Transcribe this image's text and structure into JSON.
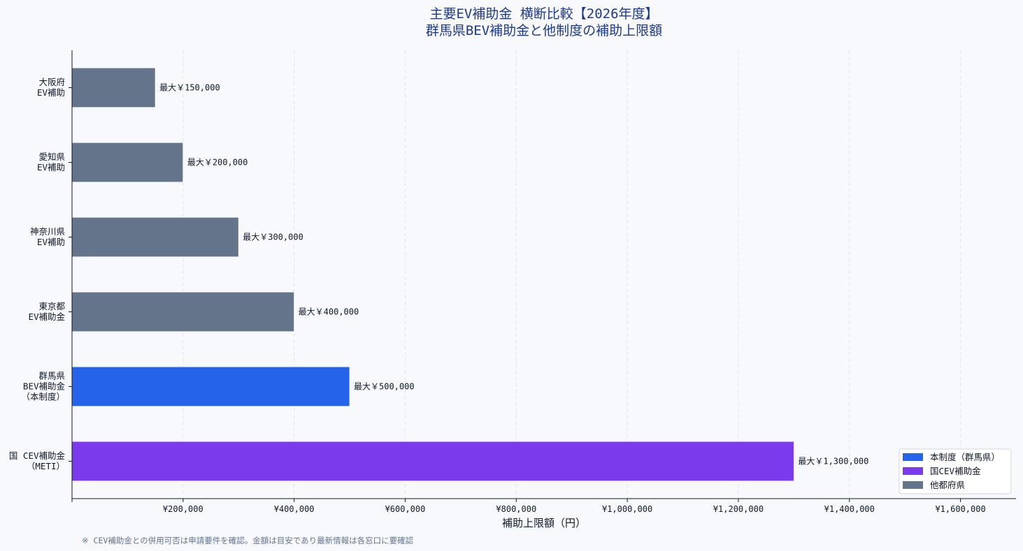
{
  "chart_data": {
    "type": "bar",
    "orientation": "horizontal",
    "title": [
      "主要EV補助金 横断比較【2026年度】",
      "群馬県BEV補助金と他制度の補助上限額"
    ],
    "xlabel": "補助上限額（円）",
    "ylabel": "",
    "xlim": [
      0,
      1700000
    ],
    "xticks": [
      200000,
      400000,
      600000,
      800000,
      1000000,
      1200000,
      1400000,
      1600000
    ],
    "xtick_labels": [
      "¥200,000",
      "¥400,000",
      "¥600,000",
      "¥800,000",
      "¥1,000,000",
      "¥1,200,000",
      "¥1,400,000",
      "¥1,600,000"
    ],
    "grid": "vertical dashed",
    "legend_position": "bottom-right",
    "groups": [
      {
        "name": "本制度（群馬県）",
        "color": "#2563eb"
      },
      {
        "name": "国CEV補助金",
        "color": "#7c3aed"
      },
      {
        "name": "他都府県",
        "color": "#64748b"
      }
    ],
    "bars": [
      {
        "category": [
          "大阪府",
          "EV補助"
        ],
        "value": 150000,
        "label": "最大￥150,000",
        "group": 2
      },
      {
        "category": [
          "愛知県",
          "EV補助"
        ],
        "value": 200000,
        "label": "最大￥200,000",
        "group": 2
      },
      {
        "category": [
          "神奈川県",
          "EV補助"
        ],
        "value": 300000,
        "label": "最大￥300,000",
        "group": 2
      },
      {
        "category": [
          "東京都",
          "EV補助金"
        ],
        "value": 400000,
        "label": "最大￥400,000",
        "group": 2
      },
      {
        "category": [
          "群馬県",
          "BEV補助金",
          "（本制度）"
        ],
        "value": 500000,
        "label": "最大￥500,000",
        "group": 0
      },
      {
        "category": [
          "国 CEV補助金",
          "（METI）"
        ],
        "value": 1300000,
        "label": "最大￥1,300,000",
        "group": 1
      }
    ],
    "footnote": "※ CEV補助金との併用可否は申請要件を確認。金額は目安であり最新情報は各窓口に要確認"
  }
}
